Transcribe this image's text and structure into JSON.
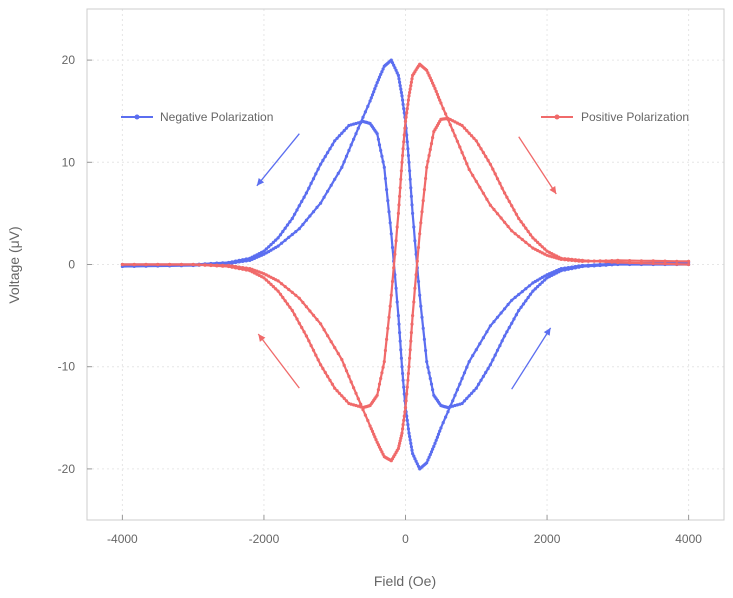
{
  "chart_data": {
    "type": "line",
    "title": "",
    "xlabel": "Field (Oe)",
    "ylabel": "Voltage (μV)",
    "xlim": [
      -4500,
      4500
    ],
    "ylim": [
      -25,
      25
    ],
    "xticks": [
      -4000,
      -2000,
      0,
      2000,
      4000
    ],
    "yticks": [
      -20,
      -10,
      0,
      10,
      20
    ],
    "grid": true,
    "legend_placement": "top, split left and right",
    "series": [
      {
        "name": "Negative Polarization",
        "color": "#5b6ef0",
        "marker": "circle",
        "branches": [
          {
            "x": [
              -4000,
              -3000,
              -2500,
              -2200,
              -2000,
              -1800,
              -1600,
              -1400,
              -1200,
              -1000,
              -800,
              -600,
              -500,
              -400,
              -300,
              -200,
              -100,
              -50,
              0,
              50,
              100,
              200,
              300,
              400,
              500,
              700,
              900,
              1200,
              1500,
              1800,
              2000,
              2200,
              2500,
              3000,
              4000
            ],
            "y": [
              0,
              0,
              0.2,
              0.6,
              1.3,
              2.6,
              4.5,
              7.0,
              9.8,
              12.1,
              13.6,
              14.0,
              13.8,
              12.8,
              9.5,
              3.0,
              -5.0,
              -10.0,
              -14.0,
              -16.5,
              -18.5,
              -20.0,
              -19.4,
              -17.8,
              -16.0,
              -12.8,
              -9.5,
              -6.0,
              -3.5,
              -1.8,
              -1.0,
              -0.4,
              -0.1,
              0.1,
              0.2
            ]
          },
          {
            "x": [
              4000,
              3000,
              2500,
              2200,
              2000,
              1800,
              1600,
              1400,
              1200,
              1000,
              800,
              600,
              500,
              400,
              300,
              200,
              100,
              50,
              0,
              -50,
              -100,
              -200,
              -300,
              -400,
              -500,
              -700,
              -900,
              -1200,
              -1500,
              -1800,
              -2000,
              -2200,
              -2500,
              -3000,
              -4000
            ],
            "y": [
              0,
              0,
              -0.2,
              -0.6,
              -1.3,
              -2.6,
              -4.5,
              -7.0,
              -9.8,
              -12.1,
              -13.6,
              -14.0,
              -13.8,
              -12.8,
              -9.5,
              -3.0,
              5.0,
              10.0,
              14.0,
              16.5,
              18.5,
              20.0,
              19.4,
              17.8,
              16.0,
              12.8,
              9.5,
              6.0,
              3.5,
              1.8,
              1.0,
              0.4,
              0.1,
              -0.1,
              -0.2
            ]
          }
        ]
      },
      {
        "name": "Positive Polarization",
        "color": "#f06a6a",
        "marker": "circle",
        "branches": [
          {
            "x": [
              -4000,
              -3000,
              -2500,
              -2200,
              -2000,
              -1800,
              -1600,
              -1400,
              -1200,
              -1000,
              -800,
              -600,
              -500,
              -400,
              -300,
              -200,
              -100,
              -50,
              0,
              50,
              100,
              200,
              300,
              400,
              500,
              700,
              900,
              1200,
              1500,
              1800,
              2000,
              2200,
              2500,
              3000,
              4000
            ],
            "y": [
              0,
              0,
              -0.2,
              -0.6,
              -1.3,
              -2.6,
              -4.5,
              -7.0,
              -9.8,
              -12.1,
              -13.6,
              -14.0,
              -13.8,
              -12.8,
              -9.5,
              -3.0,
              5.0,
              10.0,
              14.0,
              16.5,
              18.5,
              19.6,
              19.0,
              17.5,
              15.8,
              12.6,
              9.3,
              5.8,
              3.3,
              1.6,
              0.9,
              0.5,
              0.3,
              0.4,
              0.3
            ]
          },
          {
            "x": [
              4000,
              3000,
              2500,
              2200,
              2000,
              1800,
              1600,
              1400,
              1200,
              1000,
              800,
              600,
              500,
              400,
              300,
              200,
              100,
              50,
              0,
              -50,
              -100,
              -200,
              -300,
              -400,
              -500,
              -700,
              -900,
              -1200,
              -1500,
              -1800,
              -2000,
              -2200,
              -2500,
              -3000,
              -4000
            ],
            "y": [
              0,
              0.2,
              0.4,
              0.6,
              1.3,
              2.6,
              4.5,
              7.0,
              9.8,
              12.1,
              13.6,
              14.3,
              14.2,
              13.0,
              9.5,
              3.0,
              -5.0,
              -10.0,
              -14.0,
              -16.5,
              -18.0,
              -19.2,
              -18.8,
              -17.4,
              -15.8,
              -12.6,
              -9.3,
              -5.8,
              -3.3,
              -1.6,
              -0.9,
              -0.4,
              -0.1,
              0,
              0
            ]
          }
        ]
      }
    ],
    "annotations": [
      {
        "type": "arrow",
        "color": "#5b6ef0",
        "from": [
          -1500,
          12.8
        ],
        "to": [
          -2100,
          7.7
        ]
      },
      {
        "type": "arrow",
        "color": "#5b6ef0",
        "from": [
          1500,
          -12.2
        ],
        "to": [
          2050,
          -6.2
        ]
      },
      {
        "type": "arrow",
        "color": "#f06a6a",
        "from": [
          1600,
          12.5
        ],
        "to": [
          2130,
          6.9
        ]
      },
      {
        "type": "arrow",
        "color": "#f06a6a",
        "from": [
          -1500,
          -12.1
        ],
        "to": [
          -2080,
          -6.8
        ]
      }
    ]
  }
}
